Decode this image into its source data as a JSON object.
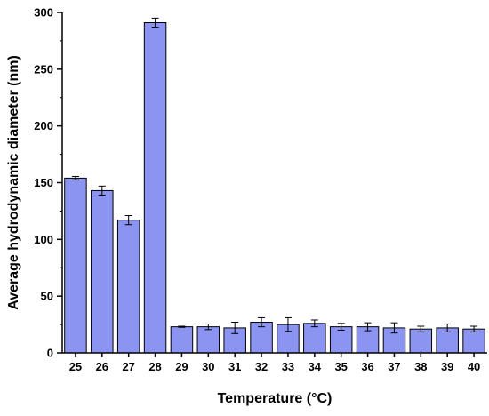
{
  "chart_data": {
    "type": "bar",
    "title": "",
    "xlabel": "Temperature (°C)",
    "ylabel": "Average hydrodynamic diameter (nm)",
    "categories": [
      "25",
      "26",
      "27",
      "28",
      "29",
      "30",
      "31",
      "32",
      "33",
      "34",
      "35",
      "36",
      "37",
      "38",
      "39",
      "40"
    ],
    "values": [
      154,
      143,
      117,
      291,
      23,
      23,
      22,
      27,
      25,
      26,
      23,
      23,
      22,
      21,
      22,
      21
    ],
    "errors": [
      1.5,
      4,
      4,
      4,
      0.5,
      2.5,
      5,
      4,
      6,
      3,
      3,
      3.5,
      4.5,
      2.5,
      3.5,
      2.5
    ],
    "ylim": [
      0,
      300
    ],
    "yticks": [
      0,
      50,
      100,
      150,
      200,
      250,
      300
    ],
    "grid": false,
    "colors": {
      "bar_fill": "#8C94F2",
      "bar_stroke": "#000000",
      "axis": "#000000"
    }
  }
}
